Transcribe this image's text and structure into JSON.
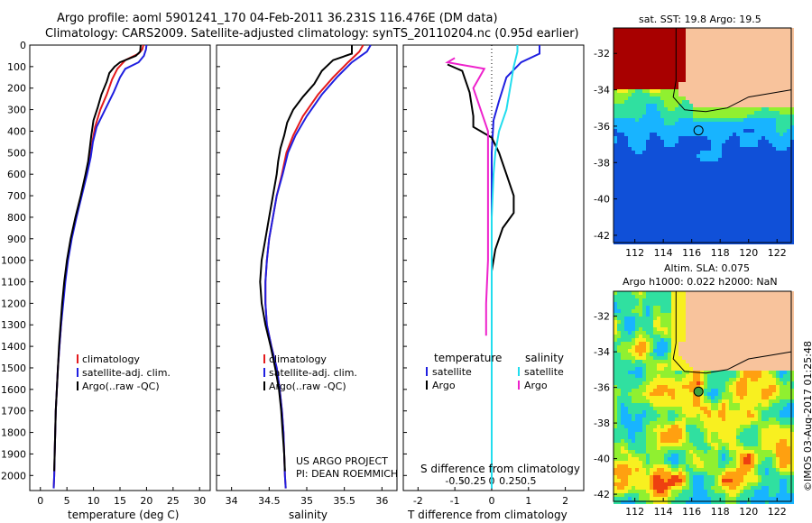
{
  "header": {
    "line1": "Argo profile: aoml 5901241_170 04-Feb-2011 36.231S 116.476E (DM data)",
    "line2": "Climatology: CARS2009. Satellite-adjusted climatology: synTS_20110204.nc (0.95d earlier)"
  },
  "colors": {
    "climatology": "#e41a1c",
    "satellite": "#1f1fe0",
    "argo": "#000000",
    "salinity_sat": "#22ddee",
    "salinity_argo": "#ee22cc"
  },
  "chart_data": [
    {
      "type": "line",
      "xlabel": "temperature (deg C)",
      "xlim": [
        -2,
        32
      ],
      "xticks": [
        0,
        5,
        10,
        15,
        20,
        25,
        30
      ],
      "ylim": [
        2070,
        0
      ],
      "yticks": [
        0,
        100,
        200,
        300,
        400,
        500,
        600,
        700,
        800,
        900,
        1000,
        1100,
        1200,
        1300,
        1400,
        1500,
        1600,
        1700,
        1800,
        1900,
        2000
      ],
      "legend": [
        "climatology",
        "satellite-adj. clim.",
        "Argo(..raw -QC)"
      ],
      "series": [
        {
          "name": "climatology",
          "color": "climatology",
          "points": [
            [
              19.4,
              0
            ],
            [
              19.2,
              20
            ],
            [
              18.5,
              40
            ],
            [
              16.0,
              70
            ],
            [
              14.5,
              110
            ],
            [
              13.5,
              160
            ],
            [
              12.5,
              230
            ],
            [
              11.3,
              300
            ],
            [
              10.3,
              380
            ],
            [
              9.8,
              450
            ],
            [
              9.4,
              520
            ],
            [
              8.7,
              600
            ],
            [
              7.7,
              700
            ],
            [
              6.7,
              800
            ],
            [
              5.8,
              900
            ],
            [
              5.1,
              1000
            ],
            [
              4.6,
              1100
            ],
            [
              4.2,
              1200
            ],
            [
              3.9,
              1300
            ],
            [
              3.6,
              1400
            ],
            [
              3.3,
              1500
            ],
            [
              3.1,
              1600
            ],
            [
              2.9,
              1700
            ],
            [
              2.8,
              1800
            ],
            [
              2.7,
              1900
            ],
            [
              2.6,
              2000
            ],
            [
              2.5,
              2060
            ]
          ]
        },
        {
          "name": "satellite-adj. clim.",
          "color": "satellite",
          "points": [
            [
              20.0,
              0
            ],
            [
              19.9,
              20
            ],
            [
              19.5,
              50
            ],
            [
              18.5,
              80
            ],
            [
              16.0,
              110
            ],
            [
              15.0,
              150
            ],
            [
              13.8,
              220
            ],
            [
              12.2,
              300
            ],
            [
              10.6,
              380
            ],
            [
              9.9,
              450
            ],
            [
              9.5,
              520
            ],
            [
              8.8,
              600
            ],
            [
              7.8,
              700
            ],
            [
              6.8,
              800
            ],
            [
              5.9,
              900
            ],
            [
              5.2,
              1000
            ],
            [
              4.7,
              1100
            ],
            [
              4.3,
              1200
            ],
            [
              3.9,
              1300
            ],
            [
              3.6,
              1400
            ],
            [
              3.3,
              1500
            ],
            [
              3.1,
              1600
            ],
            [
              2.9,
              1700
            ],
            [
              2.8,
              1800
            ],
            [
              2.7,
              1900
            ],
            [
              2.6,
              2000
            ],
            [
              2.5,
              2060
            ]
          ]
        },
        {
          "name": "Argo(..raw -QC)",
          "color": "argo",
          "points": [
            [
              18.9,
              0
            ],
            [
              18.8,
              30
            ],
            [
              18.0,
              50
            ],
            [
              15.0,
              80
            ],
            [
              14.0,
              100
            ],
            [
              13.0,
              130
            ],
            [
              12.5,
              170
            ],
            [
              11.5,
              230
            ],
            [
              10.8,
              290
            ],
            [
              10.0,
              350
            ],
            [
              9.6,
              420
            ],
            [
              9.3,
              480
            ],
            [
              9.0,
              540
            ],
            [
              8.5,
              600
            ],
            [
              7.6,
              700
            ],
            [
              6.6,
              800
            ],
            [
              5.7,
              900
            ],
            [
              5.0,
              1000
            ],
            [
              4.5,
              1100
            ],
            [
              4.1,
              1200
            ],
            [
              3.8,
              1300
            ],
            [
              3.5,
              1400
            ],
            [
              3.3,
              1500
            ],
            [
              3.1,
              1600
            ],
            [
              2.9,
              1700
            ],
            [
              2.8,
              1800
            ],
            [
              2.7,
              1900
            ],
            [
              2.6,
              1980
            ]
          ]
        }
      ]
    },
    {
      "type": "line",
      "xlabel": "salinity",
      "xlim": [
        33.8,
        36.2
      ],
      "xticks": [
        34,
        34.5,
        35,
        35.5,
        36
      ],
      "ylim": [
        2070,
        0
      ],
      "legend": [
        "climatology",
        "satellite-adj. clim.",
        "Argo(..raw -QC)"
      ],
      "annotations": [
        "US ARGO PROJECT",
        "PI: DEAN ROEMMICH"
      ],
      "series": [
        {
          "name": "climatology",
          "color": "climatology",
          "points": [
            [
              35.75,
              0
            ],
            [
              35.7,
              30
            ],
            [
              35.55,
              80
            ],
            [
              35.35,
              150
            ],
            [
              35.15,
              230
            ],
            [
              34.95,
              330
            ],
            [
              34.82,
              420
            ],
            [
              34.73,
              500
            ],
            [
              34.67,
              600
            ],
            [
              34.6,
              700
            ],
            [
              34.55,
              800
            ],
            [
              34.5,
              900
            ],
            [
              34.47,
              1000
            ],
            [
              34.45,
              1100
            ],
            [
              34.45,
              1200
            ],
            [
              34.47,
              1300
            ],
            [
              34.53,
              1400
            ],
            [
              34.6,
              1500
            ],
            [
              34.64,
              1600
            ],
            [
              34.67,
              1700
            ],
            [
              34.69,
              1800
            ],
            [
              34.7,
              1900
            ],
            [
              34.71,
              2000
            ],
            [
              34.72,
              2060
            ]
          ]
        },
        {
          "name": "satellite-adj. clim.",
          "color": "satellite",
          "points": [
            [
              35.85,
              0
            ],
            [
              35.8,
              30
            ],
            [
              35.6,
              80
            ],
            [
              35.4,
              150
            ],
            [
              35.2,
              230
            ],
            [
              35.0,
              330
            ],
            [
              34.85,
              420
            ],
            [
              34.75,
              500
            ],
            [
              34.68,
              600
            ],
            [
              34.6,
              700
            ],
            [
              34.55,
              800
            ],
            [
              34.5,
              900
            ],
            [
              34.47,
              1000
            ],
            [
              34.45,
              1100
            ],
            [
              34.45,
              1200
            ],
            [
              34.47,
              1300
            ],
            [
              34.53,
              1400
            ],
            [
              34.6,
              1500
            ],
            [
              34.64,
              1600
            ],
            [
              34.67,
              1700
            ],
            [
              34.69,
              1800
            ],
            [
              34.7,
              1900
            ],
            [
              34.71,
              2000
            ],
            [
              34.72,
              2060
            ]
          ]
        },
        {
          "name": "Argo(..raw -QC)",
          "color": "argo",
          "points": [
            [
              35.6,
              0
            ],
            [
              35.6,
              40
            ],
            [
              35.35,
              70
            ],
            [
              35.2,
              120
            ],
            [
              35.1,
              180
            ],
            [
              34.95,
              240
            ],
            [
              34.82,
              300
            ],
            [
              34.74,
              360
            ],
            [
              34.7,
              420
            ],
            [
              34.65,
              480
            ],
            [
              34.62,
              540
            ],
            [
              34.6,
              600
            ],
            [
              34.55,
              700
            ],
            [
              34.5,
              800
            ],
            [
              34.45,
              900
            ],
            [
              34.4,
              1000
            ],
            [
              34.38,
              1100
            ],
            [
              34.4,
              1200
            ],
            [
              34.45,
              1300
            ],
            [
              34.52,
              1400
            ],
            [
              34.58,
              1500
            ],
            [
              34.63,
              1600
            ],
            [
              34.66,
              1700
            ],
            [
              34.68,
              1800
            ],
            [
              34.7,
              1900
            ],
            [
              34.71,
              1980
            ]
          ]
        }
      ]
    },
    {
      "type": "line",
      "xlabel": "T difference from climatology",
      "title": "S difference from climatology",
      "xlim": [
        -2.4,
        2.5
      ],
      "xticks": [
        -2,
        -1,
        0,
        1,
        2
      ],
      "s_ticks": [
        "-0.5",
        "-0.25",
        "0",
        "0.25",
        "0.5"
      ],
      "ylim": [
        2070,
        0
      ],
      "legend": {
        "temperature": [
          "satellite",
          "Argo"
        ],
        "salinity": [
          "satellite",
          "Argo"
        ],
        "temperature_label": "temperature",
        "salinity_label": "salinity"
      },
      "series": [
        {
          "name": "satellite",
          "group": "temperature",
          "color": "satellite",
          "points": [
            [
              1.3,
              0
            ],
            [
              1.3,
              40
            ],
            [
              0.8,
              80
            ],
            [
              0.4,
              150
            ],
            [
              0.2,
              260
            ],
            [
              0.05,
              350
            ],
            [
              0,
              500
            ],
            [
              0,
              800
            ],
            [
              0,
              1200
            ],
            [
              0,
              1600
            ],
            [
              0,
              2000
            ],
            [
              0,
              2060
            ]
          ]
        },
        {
          "name": "Argo",
          "group": "temperature",
          "color": "argo",
          "points": [
            [
              -1.2,
              90
            ],
            [
              -0.8,
              120
            ],
            [
              -0.6,
              220
            ],
            [
              -0.5,
              330
            ],
            [
              -0.5,
              380
            ],
            [
              0,
              430
            ],
            [
              0.2,
              500
            ],
            [
              0.4,
              600
            ],
            [
              0.6,
              700
            ],
            [
              0.6,
              780
            ],
            [
              0.3,
              850
            ],
            [
              0.1,
              950
            ],
            [
              0,
              1050
            ],
            [
              0,
              1400
            ],
            [
              0,
              2000
            ]
          ]
        },
        {
          "name": "satellite",
          "group": "salinity",
          "color": "salinity_sat",
          "points": [
            [
              0.7,
              0
            ],
            [
              0.7,
              30
            ],
            [
              0.6,
              100
            ],
            [
              0.5,
              200
            ],
            [
              0.4,
              300
            ],
            [
              0.2,
              400
            ],
            [
              0.1,
              500
            ],
            [
              0.05,
              600
            ],
            [
              0,
              800
            ],
            [
              0,
              1200
            ],
            [
              0,
              1600
            ],
            [
              0,
              2000
            ],
            [
              0,
              2060
            ]
          ]
        },
        {
          "name": "Argo",
          "group": "salinity",
          "color": "salinity_argo",
          "points": [
            [
              -1.0,
              60
            ],
            [
              -1.2,
              80
            ],
            [
              -0.2,
              110
            ],
            [
              -0.5,
              200
            ],
            [
              -0.1,
              400
            ],
            [
              -0.1,
              600
            ],
            [
              -0.1,
              800
            ],
            [
              -0.1,
              1000
            ],
            [
              -0.15,
              1200
            ],
            [
              -0.15,
              1350
            ]
          ]
        }
      ]
    },
    {
      "type": "heatmap",
      "title": "sat. SST: 19.8 Argo: 19.5",
      "xlim": [
        110.5,
        123
      ],
      "ylim": [
        -42.4,
        -30.6
      ],
      "xticks": [
        112,
        114,
        116,
        118,
        120,
        122
      ],
      "yticks": [
        -32,
        -34,
        -36,
        -38,
        -40,
        -42
      ],
      "marker": [
        116.476,
        -36.231
      ]
    },
    {
      "type": "heatmap",
      "title": "Altim. SLA: 0.075",
      "subtitle": "Argo h1000: 0.022 h2000: NaN",
      "xlim": [
        110.5,
        123
      ],
      "ylim": [
        -42.4,
        -30.6
      ],
      "xticks": [
        112,
        114,
        116,
        118,
        120,
        122
      ],
      "yticks": [
        -32,
        -34,
        -36,
        -38,
        -40,
        -42
      ],
      "marker": [
        116.476,
        -36.231
      ]
    }
  ],
  "watermark": "©IMOS 03-Aug-2017 01:25:48"
}
